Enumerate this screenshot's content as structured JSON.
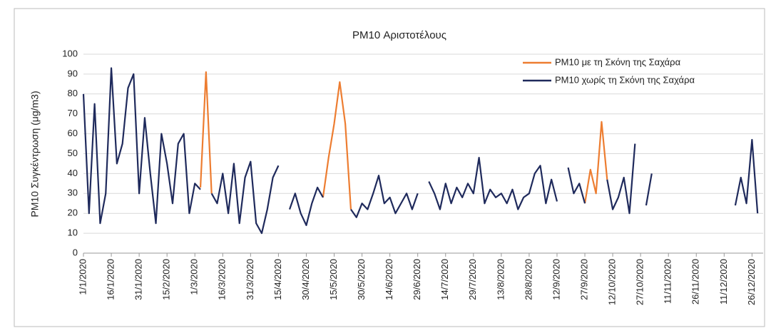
{
  "chart_data": {
    "type": "line",
    "title": "PM10 Αριστοτέλους",
    "y_label": "PM10 Συγκέντρωση (μg/m3)",
    "x": [
      0,
      3,
      6,
      9,
      12,
      15,
      18,
      21,
      24,
      27,
      30,
      33,
      36,
      39,
      42,
      45,
      48,
      51,
      54,
      57,
      60,
      63,
      66,
      69,
      72,
      75,
      78,
      81,
      84,
      87,
      90,
      93,
      96,
      99,
      102,
      105,
      108,
      111,
      114,
      117,
      120,
      123,
      126,
      129,
      132,
      135,
      138,
      141,
      144,
      147,
      150,
      153,
      156,
      159,
      162,
      165,
      168,
      171,
      174,
      177,
      180,
      183,
      186,
      189,
      192,
      195,
      198,
      201,
      204,
      207,
      210,
      213,
      216,
      219,
      222,
      225,
      228,
      231,
      234,
      237,
      240,
      243,
      246,
      249,
      252,
      255,
      258,
      261,
      264,
      267,
      270,
      273,
      276,
      279,
      282,
      285,
      288,
      291,
      294,
      297,
      300,
      303,
      306,
      309,
      312,
      315,
      318,
      321,
      324,
      327,
      330,
      333,
      336,
      339,
      342,
      345,
      348,
      351,
      354,
      357,
      360,
      363
    ],
    "series": [
      {
        "name": "PM10 με τη Σκόνη της Σαχάρα",
        "color": "#ed7d31",
        "values": [
          null,
          null,
          null,
          null,
          null,
          null,
          null,
          null,
          null,
          null,
          null,
          null,
          null,
          null,
          null,
          null,
          null,
          null,
          null,
          null,
          null,
          33,
          91,
          30,
          null,
          null,
          null,
          null,
          null,
          null,
          null,
          null,
          null,
          null,
          null,
          null,
          null,
          null,
          null,
          null,
          null,
          null,
          null,
          28,
          48,
          65,
          86,
          65,
          22,
          null,
          null,
          null,
          null,
          null,
          null,
          null,
          null,
          null,
          null,
          null,
          null,
          null,
          null,
          null,
          null,
          null,
          null,
          null,
          null,
          null,
          null,
          null,
          null,
          null,
          null,
          null,
          null,
          null,
          null,
          null,
          null,
          null,
          null,
          null,
          null,
          null,
          null,
          null,
          null,
          null,
          25,
          42,
          30,
          66,
          37,
          null,
          null,
          null,
          null,
          null,
          null,
          null,
          null,
          null,
          null,
          null,
          null,
          null,
          null,
          null,
          null,
          null,
          null,
          null,
          null,
          null,
          null,
          null,
          null,
          null,
          null,
          null
        ]
      },
      {
        "name": "PM10 χωρίς τη Σκόνη της Σαχάρα",
        "color": "#1f2a5c",
        "values": [
          80,
          20,
          75,
          15,
          30,
          93,
          45,
          55,
          83,
          90,
          30,
          68,
          40,
          15,
          60,
          45,
          25,
          55,
          60,
          20,
          35,
          32,
          null,
          30,
          25,
          40,
          20,
          45,
          15,
          38,
          46,
          15,
          10,
          22,
          38,
          44,
          null,
          22,
          30,
          20,
          14,
          25,
          33,
          28,
          null,
          null,
          null,
          null,
          22,
          18,
          25,
          22,
          30,
          39,
          25,
          28,
          20,
          25,
          30,
          22,
          30,
          null,
          36,
          30,
          22,
          35,
          25,
          33,
          28,
          35,
          30,
          48,
          25,
          32,
          28,
          30,
          25,
          32,
          22,
          28,
          30,
          40,
          44,
          25,
          37,
          26,
          null,
          43,
          30,
          35,
          25,
          null,
          30,
          null,
          37,
          22,
          28,
          38,
          20,
          55,
          null,
          24,
          40,
          null,
          null,
          null,
          null,
          null,
          null,
          null,
          null,
          null,
          null,
          null,
          null,
          null,
          null,
          24,
          38,
          25,
          57,
          20
        ]
      }
    ],
    "xlim": [
      0,
      366
    ],
    "xticks": [
      {
        "value": 0,
        "label": "1/1/2020"
      },
      {
        "value": 15,
        "label": "16/1/2020"
      },
      {
        "value": 30,
        "label": "31/1/2020"
      },
      {
        "value": 45,
        "label": "15/2/2020"
      },
      {
        "value": 60,
        "label": "1/3/2020"
      },
      {
        "value": 75,
        "label": "16/3/2020"
      },
      {
        "value": 90,
        "label": "31/3/2020"
      },
      {
        "value": 105,
        "label": "15/4/2020"
      },
      {
        "value": 120,
        "label": "30/4/2020"
      },
      {
        "value": 135,
        "label": "15/5/2020"
      },
      {
        "value": 150,
        "label": "30/5/2020"
      },
      {
        "value": 165,
        "label": "14/6/2020"
      },
      {
        "value": 180,
        "label": "29/6/2020"
      },
      {
        "value": 195,
        "label": "14/7/2020"
      },
      {
        "value": 210,
        "label": "29/7/2020"
      },
      {
        "value": 225,
        "label": "13/8/2020"
      },
      {
        "value": 240,
        "label": "28/8/2020"
      },
      {
        "value": 255,
        "label": "12/9/2020"
      },
      {
        "value": 270,
        "label": "27/9/2020"
      },
      {
        "value": 285,
        "label": "12/10/2020"
      },
      {
        "value": 300,
        "label": "27/10/2020"
      },
      {
        "value": 315,
        "label": "11/11/2020"
      },
      {
        "value": 330,
        "label": "26/11/2020"
      },
      {
        "value": 345,
        "label": "11/12/2020"
      },
      {
        "value": 360,
        "label": "26/12/2020"
      }
    ],
    "ylim": [
      0,
      100
    ],
    "yticks": [
      0,
      10,
      20,
      30,
      40,
      50,
      60,
      70,
      80,
      90,
      100
    ],
    "grid": true,
    "legend": "top-right"
  }
}
